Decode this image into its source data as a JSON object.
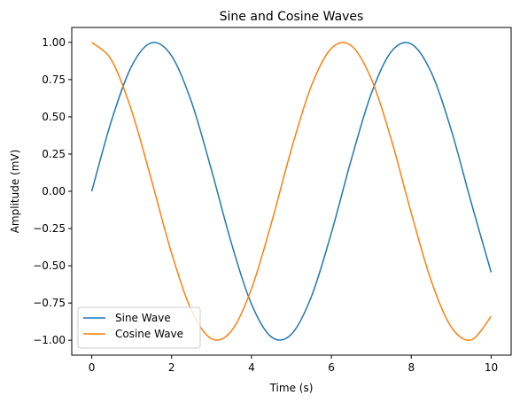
{
  "chart_data": {
    "type": "line",
    "title": "Sine and Cosine Waves",
    "xlabel": "Time (s)",
    "ylabel": "Amplitude (mV)",
    "xlim": [
      -0.5,
      10.5
    ],
    "ylim": [
      -1.1,
      1.1
    ],
    "x_ticks": [
      0,
      2,
      4,
      6,
      8,
      10
    ],
    "x_tick_labels": [
      "0",
      "2",
      "4",
      "6",
      "8",
      "10"
    ],
    "y_ticks": [
      -1.0,
      -0.75,
      -0.5,
      -0.25,
      0.0,
      0.25,
      0.5,
      0.75,
      1.0
    ],
    "y_tick_labels": [
      "−1.00",
      "−0.75",
      "−0.50",
      "−0.25",
      "0.00",
      "0.25",
      "0.50",
      "0.75",
      "1.00"
    ],
    "grid": false,
    "legend_position": "lower-left",
    "x": [
      0,
      0.5,
      1,
      1.5,
      2,
      2.5,
      3,
      3.5,
      4,
      4.5,
      5,
      5.5,
      6,
      6.5,
      7,
      7.5,
      8,
      8.5,
      9,
      9.5,
      10
    ],
    "series": [
      {
        "name": "Sine Wave",
        "color": "#1f77b4",
        "values": [
          0.0,
          0.479,
          0.841,
          0.997,
          0.909,
          0.598,
          0.141,
          -0.351,
          -0.757,
          -0.978,
          -0.959,
          -0.706,
          -0.279,
          0.215,
          0.657,
          0.938,
          0.989,
          0.798,
          0.412,
          -0.075,
          -0.544
        ]
      },
      {
        "name": "Cosine Wave",
        "color": "#ff7f0e",
        "values": [
          1.0,
          0.878,
          0.54,
          0.071,
          -0.416,
          -0.801,
          -0.99,
          -0.936,
          -0.654,
          -0.211,
          0.284,
          0.709,
          0.96,
          0.977,
          0.754,
          0.347,
          -0.146,
          -0.602,
          -0.911,
          -0.997,
          -0.839
        ]
      }
    ]
  }
}
